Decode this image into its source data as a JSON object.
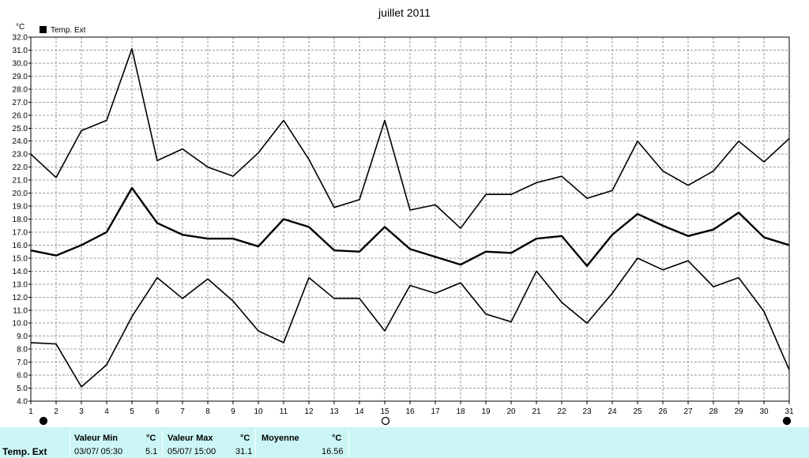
{
  "chart_data": {
    "type": "line",
    "title": "juillet 2011",
    "ylabel": "°C",
    "xlabel": "",
    "legend": {
      "position": "top-left",
      "entries": [
        "Temp. Ext"
      ]
    },
    "grid": true,
    "ylim": [
      4.0,
      32.0
    ],
    "xlim": [
      1,
      31
    ],
    "yticks": [
      "4.0",
      "5.0",
      "6.0",
      "7.0",
      "8.0",
      "9.0",
      "10.0",
      "11.0",
      "12.0",
      "13.0",
      "14.0",
      "15.0",
      "16.0",
      "17.0",
      "18.0",
      "19.0",
      "20.0",
      "21.0",
      "22.0",
      "23.0",
      "24.0",
      "25.0",
      "26.0",
      "27.0",
      "28.0",
      "29.0",
      "30.0",
      "31.0",
      "32.0"
    ],
    "x": [
      1,
      2,
      3,
      4,
      5,
      6,
      7,
      8,
      9,
      10,
      11,
      12,
      13,
      14,
      15,
      16,
      17,
      18,
      19,
      20,
      21,
      22,
      23,
      24,
      25,
      26,
      27,
      28,
      29,
      30,
      31
    ],
    "series": [
      {
        "role": "max",
        "values": [
          23.0,
          21.2,
          24.8,
          25.6,
          31.1,
          22.5,
          23.4,
          22.0,
          21.3,
          23.1,
          25.6,
          22.6,
          18.9,
          19.5,
          25.6,
          18.7,
          19.1,
          17.3,
          19.9,
          19.9,
          20.8,
          21.3,
          19.6,
          20.2,
          24.0,
          21.7,
          20.6,
          21.7,
          24.0,
          22.4,
          24.2
        ]
      },
      {
        "role": "mean",
        "values": [
          15.6,
          15.2,
          16.0,
          17.0,
          20.4,
          17.7,
          16.8,
          16.5,
          16.5,
          15.9,
          18.0,
          17.4,
          15.6,
          15.5,
          17.4,
          15.7,
          15.1,
          14.5,
          15.5,
          15.4,
          16.5,
          16.7,
          14.4,
          16.8,
          18.4,
          17.5,
          16.7,
          17.2,
          18.5,
          16.6,
          16.0
        ]
      },
      {
        "role": "min",
        "values": [
          8.5,
          8.4,
          5.1,
          6.8,
          10.5,
          13.5,
          11.9,
          13.4,
          11.7,
          9.4,
          8.5,
          13.5,
          11.9,
          11.9,
          9.4,
          12.9,
          12.3,
          13.1,
          10.7,
          10.1,
          14.0,
          11.6,
          10.0,
          12.3,
          15.0,
          14.1,
          14.8,
          12.8,
          13.5,
          10.9,
          6.4
        ]
      }
    ],
    "markers": [
      {
        "day": 1,
        "symbol": "filled"
      },
      {
        "day": 15,
        "symbol": "open"
      },
      {
        "day": 31,
        "symbol": "filled"
      }
    ]
  },
  "summary": {
    "row_label": "Temp. Ext",
    "min_label": "Valeur Min",
    "min_unit": "°C",
    "min_time": "03/07/  05:30",
    "min_value": "5.1",
    "max_label": "Valeur Max",
    "max_unit": "°C",
    "max_time": "05/07/  15:00",
    "max_value": "31.1",
    "mean_label": "Moyenne",
    "mean_unit": "°C",
    "mean_value": "16.56"
  }
}
